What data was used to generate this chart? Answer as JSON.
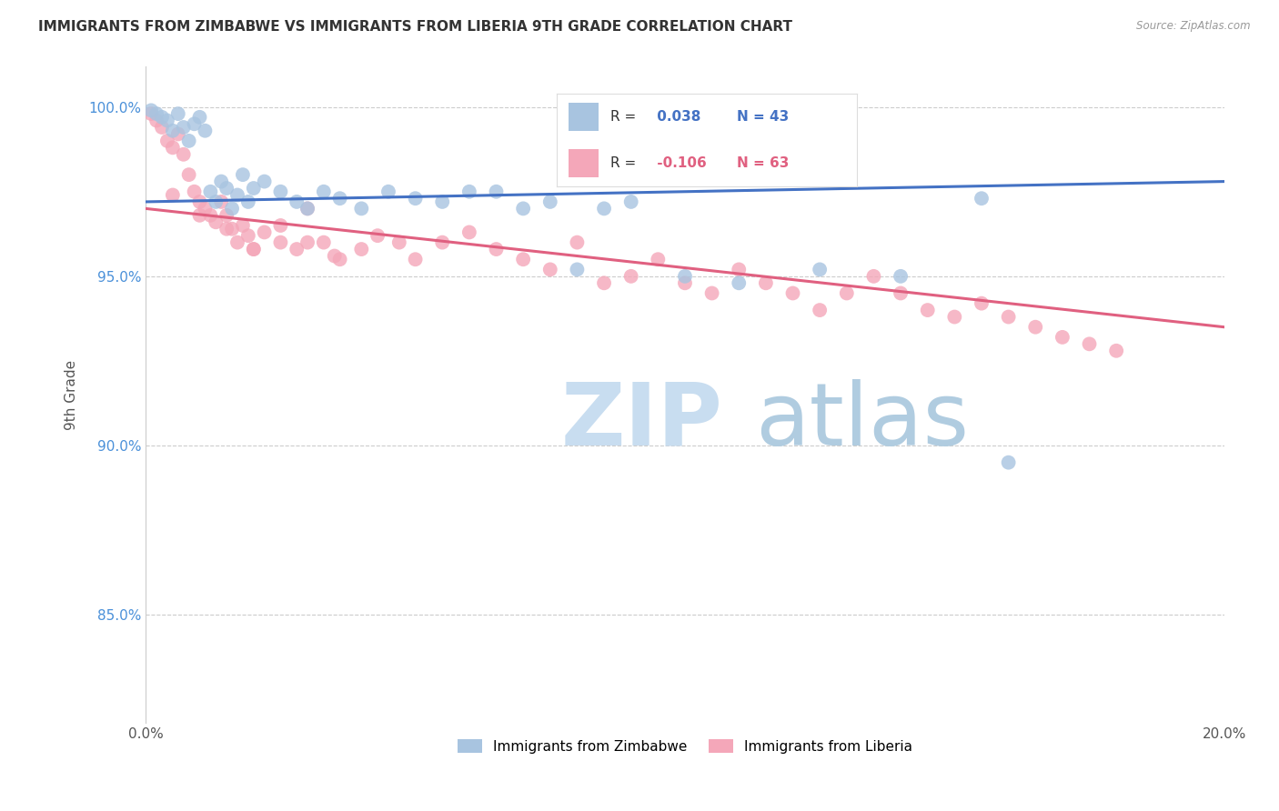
{
  "title": "IMMIGRANTS FROM ZIMBABWE VS IMMIGRANTS FROM LIBERIA 9TH GRADE CORRELATION CHART",
  "source": "Source: ZipAtlas.com",
  "ylabel": "9th Grade",
  "xlim": [
    0.0,
    0.2
  ],
  "ylim": [
    0.818,
    1.012
  ],
  "yticks": [
    0.85,
    0.9,
    0.95,
    1.0
  ],
  "ytick_labels": [
    "85.0%",
    "90.0%",
    "95.0%",
    "100.0%"
  ],
  "xticks": [
    0.0,
    0.05,
    0.1,
    0.15,
    0.2
  ],
  "xtick_labels": [
    "0.0%",
    "",
    "",
    "",
    "20.0%"
  ],
  "zimbabwe_R": 0.038,
  "zimbabwe_N": 43,
  "liberia_R": -0.106,
  "liberia_N": 63,
  "zimbabwe_color": "#a8c4e0",
  "zimbabwe_line_color": "#4472c4",
  "liberia_color": "#f4a7b9",
  "liberia_line_color": "#e06080",
  "watermark_zip": "ZIP",
  "watermark_atlas": "atlas",
  "zim_line_y0": 0.972,
  "zim_line_y1": 0.978,
  "lib_line_y0": 0.97,
  "lib_line_y1": 0.935,
  "zimbabwe_x": [
    0.001,
    0.002,
    0.003,
    0.004,
    0.005,
    0.006,
    0.007,
    0.008,
    0.009,
    0.01,
    0.011,
    0.012,
    0.013,
    0.014,
    0.015,
    0.016,
    0.017,
    0.018,
    0.019,
    0.02,
    0.022,
    0.025,
    0.028,
    0.03,
    0.033,
    0.036,
    0.04,
    0.045,
    0.05,
    0.055,
    0.06,
    0.065,
    0.07,
    0.075,
    0.08,
    0.085,
    0.09,
    0.1,
    0.11,
    0.125,
    0.14,
    0.155,
    0.16
  ],
  "zimbabwe_y": [
    0.999,
    0.998,
    0.997,
    0.996,
    0.993,
    0.998,
    0.994,
    0.99,
    0.995,
    0.997,
    0.993,
    0.975,
    0.972,
    0.978,
    0.976,
    0.97,
    0.974,
    0.98,
    0.972,
    0.976,
    0.978,
    0.975,
    0.972,
    0.97,
    0.975,
    0.973,
    0.97,
    0.975,
    0.973,
    0.972,
    0.975,
    0.975,
    0.97,
    0.972,
    0.952,
    0.97,
    0.972,
    0.95,
    0.948,
    0.952,
    0.95,
    0.973,
    0.895
  ],
  "liberia_x": [
    0.001,
    0.002,
    0.003,
    0.004,
    0.005,
    0.006,
    0.007,
    0.008,
    0.009,
    0.01,
    0.011,
    0.012,
    0.013,
    0.014,
    0.015,
    0.016,
    0.017,
    0.018,
    0.019,
    0.02,
    0.022,
    0.025,
    0.028,
    0.03,
    0.033,
    0.036,
    0.04,
    0.043,
    0.047,
    0.05,
    0.055,
    0.06,
    0.065,
    0.07,
    0.075,
    0.08,
    0.085,
    0.09,
    0.095,
    0.1,
    0.105,
    0.11,
    0.115,
    0.12,
    0.125,
    0.13,
    0.135,
    0.14,
    0.145,
    0.15,
    0.155,
    0.16,
    0.165,
    0.17,
    0.175,
    0.18,
    0.005,
    0.01,
    0.015,
    0.02,
    0.025,
    0.03,
    0.035
  ],
  "liberia_y": [
    0.998,
    0.996,
    0.994,
    0.99,
    0.988,
    0.992,
    0.986,
    0.98,
    0.975,
    0.972,
    0.97,
    0.968,
    0.966,
    0.972,
    0.968,
    0.964,
    0.96,
    0.965,
    0.962,
    0.958,
    0.963,
    0.96,
    0.958,
    0.97,
    0.96,
    0.955,
    0.958,
    0.962,
    0.96,
    0.955,
    0.96,
    0.963,
    0.958,
    0.955,
    0.952,
    0.96,
    0.948,
    0.95,
    0.955,
    0.948,
    0.945,
    0.952,
    0.948,
    0.945,
    0.94,
    0.945,
    0.95,
    0.945,
    0.94,
    0.938,
    0.942,
    0.938,
    0.935,
    0.932,
    0.93,
    0.928,
    0.974,
    0.968,
    0.964,
    0.958,
    0.965,
    0.96,
    0.956
  ]
}
